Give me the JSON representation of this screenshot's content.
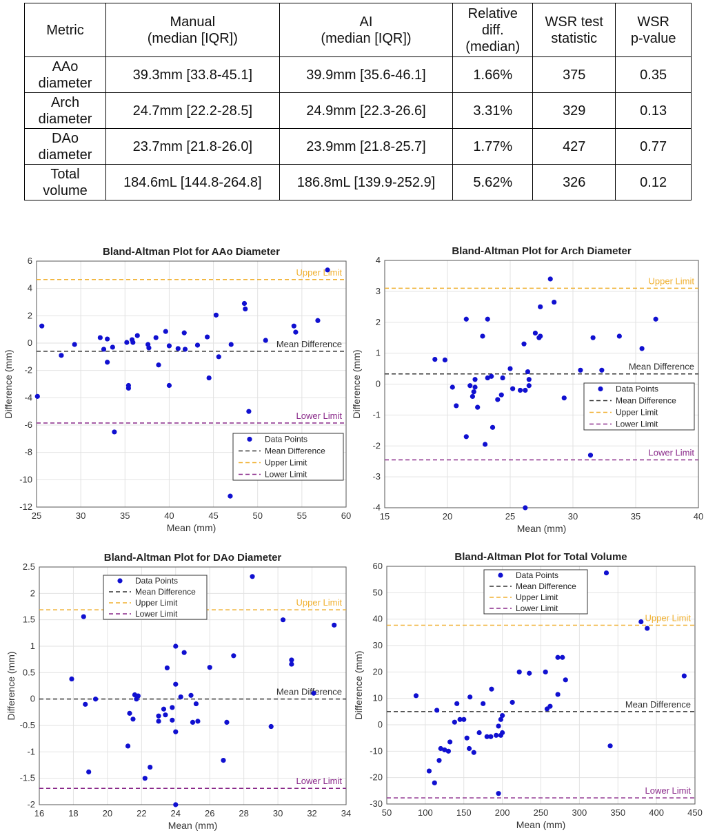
{
  "table": {
    "headers": [
      "Metric",
      "Manual\n(median [IQR])",
      "AI\n(median [IQR])",
      "Relative\ndiff.\n(median)",
      "WSR test\nstatistic",
      "WSR\np-value"
    ],
    "rows": [
      [
        "AAo\ndiameter",
        "39.3mm [33.8-45.1]",
        "39.9mm [35.6-46.1]",
        "1.66%",
        "375",
        "0.35"
      ],
      [
        "Arch\ndiameter",
        "24.7mm [22.2-28.5]",
        "24.9mm [22.3-26.6]",
        "3.31%",
        "329",
        "0.13"
      ],
      [
        "DAo\ndiameter",
        "23.7mm [21.8-26.0]",
        "23.9mm [21.8-25.7]",
        "1.77%",
        "427",
        "0.77"
      ],
      [
        "Total\nvolume",
        "184.6mL [144.8-264.8]",
        "186.8mL [139.9-252.9]",
        "5.62%",
        "326",
        "0.12"
      ]
    ]
  },
  "colors": {
    "points": "#1010d0",
    "mean": "#333333",
    "upper": "#f0b030",
    "lower": "#8a2a8a"
  },
  "labels": {
    "data_points": "Data Points",
    "mean_difference": "Mean Difference",
    "upper_limit": "Upper Limit",
    "lower_limit": "Lower Limit"
  },
  "chart_data": [
    {
      "type": "scatter",
      "title": "Bland-Altman Plot for AAo Diameter",
      "xlabel": "Mean (mm)",
      "ylabel": "Difference (mm)",
      "xlim": [
        25,
        60
      ],
      "ylim": [
        -12,
        6
      ],
      "xticks": [
        25,
        30,
        35,
        40,
        45,
        50,
        55,
        60
      ],
      "yticks": [
        -12,
        -10,
        -8,
        -6,
        -4,
        -2,
        0,
        2,
        4,
        6
      ],
      "mean_difference": -0.6,
      "upper_limit": 4.65,
      "lower_limit": -5.85,
      "grid": true,
      "legend": "lower-right",
      "points": [
        [
          25.1,
          -3.9
        ],
        [
          25.6,
          1.25
        ],
        [
          27.8,
          -0.9
        ],
        [
          29.3,
          -0.1
        ],
        [
          32.2,
          0.4
        ],
        [
          32.6,
          -0.45
        ],
        [
          33.0,
          0.3
        ],
        [
          33.0,
          -1.4
        ],
        [
          33.6,
          -0.3
        ],
        [
          33.8,
          -6.5
        ],
        [
          35.2,
          0.05
        ],
        [
          35.4,
          -3.1
        ],
        [
          35.4,
          -3.3
        ],
        [
          35.8,
          0.25
        ],
        [
          35.9,
          0.05
        ],
        [
          36.4,
          0.55
        ],
        [
          37.6,
          -0.1
        ],
        [
          37.7,
          -0.35
        ],
        [
          38.5,
          0.4
        ],
        [
          38.8,
          -1.6
        ],
        [
          39.6,
          0.85
        ],
        [
          40.0,
          -0.2
        ],
        [
          40.0,
          -3.1
        ],
        [
          41.0,
          -0.4
        ],
        [
          41.7,
          0.75
        ],
        [
          41.8,
          -0.45
        ],
        [
          43.2,
          -0.15
        ],
        [
          44.3,
          0.45
        ],
        [
          44.5,
          -2.55
        ],
        [
          45.3,
          2.05
        ],
        [
          45.6,
          -1.0
        ],
        [
          46.9,
          -11.2
        ],
        [
          47.0,
          -0.1
        ],
        [
          48.5,
          2.9
        ],
        [
          48.6,
          2.5
        ],
        [
          49.0,
          -5.0
        ],
        [
          50.9,
          0.2
        ],
        [
          54.1,
          1.25
        ],
        [
          54.3,
          0.8
        ],
        [
          56.8,
          1.65
        ],
        [
          57.9,
          5.35
        ]
      ]
    },
    {
      "type": "scatter",
      "title": "Bland-Altman Plot for Arch Diameter",
      "xlabel": "Mean (mm)",
      "ylabel": "Difference (mm)",
      "xlim": [
        15,
        40
      ],
      "ylim": [
        -4,
        4
      ],
      "xticks": [
        15,
        20,
        25,
        30,
        35,
        40
      ],
      "yticks": [
        -4,
        -3,
        -2,
        -1,
        0,
        1,
        2,
        3,
        4
      ],
      "mean_difference": 0.33,
      "upper_limit": 3.1,
      "lower_limit": -2.45,
      "grid": true,
      "legend": "center-right",
      "points": [
        [
          19.0,
          0.8
        ],
        [
          19.8,
          0.78
        ],
        [
          20.4,
          -0.1
        ],
        [
          20.7,
          -0.7
        ],
        [
          21.5,
          2.1
        ],
        [
          21.5,
          -1.7
        ],
        [
          21.8,
          -0.05
        ],
        [
          22.0,
          -0.4
        ],
        [
          22.1,
          -0.25
        ],
        [
          22.2,
          -0.1
        ],
        [
          22.2,
          0.15
        ],
        [
          22.4,
          -0.75
        ],
        [
          22.8,
          1.55
        ],
        [
          23.0,
          -1.95
        ],
        [
          23.2,
          0.2
        ],
        [
          23.2,
          2.1
        ],
        [
          23.5,
          0.25
        ],
        [
          23.6,
          -1.4
        ],
        [
          24.0,
          -0.5
        ],
        [
          24.3,
          -0.35
        ],
        [
          24.4,
          0.2
        ],
        [
          25.0,
          0.5
        ],
        [
          25.2,
          -0.15
        ],
        [
          25.8,
          -0.2
        ],
        [
          26.1,
          1.3
        ],
        [
          26.2,
          -0.2
        ],
        [
          26.4,
          0.4
        ],
        [
          26.5,
          0.15
        ],
        [
          26.5,
          -0.05
        ],
        [
          26.2,
          -4.0
        ],
        [
          27.0,
          1.65
        ],
        [
          27.3,
          1.5
        ],
        [
          27.4,
          2.5
        ],
        [
          27.4,
          1.55
        ],
        [
          28.2,
          3.4
        ],
        [
          28.5,
          2.65
        ],
        [
          29.3,
          -0.45
        ],
        [
          30.6,
          0.45
        ],
        [
          31.4,
          -2.3
        ],
        [
          31.6,
          1.5
        ],
        [
          32.3,
          0.45
        ],
        [
          33.7,
          1.55
        ],
        [
          35.5,
          1.15
        ],
        [
          36.6,
          2.1
        ]
      ]
    },
    {
      "type": "scatter",
      "title": "Bland-Altman Plot for DAo Diameter",
      "xlabel": "Mean (mm)",
      "ylabel": "Difference (mm)",
      "xlim": [
        16,
        34
      ],
      "ylim": [
        -2,
        2.5
      ],
      "xticks": [
        16,
        18,
        20,
        22,
        24,
        26,
        28,
        30,
        32,
        34
      ],
      "yticks": [
        -2,
        -1.5,
        -1,
        -0.5,
        0,
        0.5,
        1,
        1.5,
        2,
        2.5
      ],
      "mean_difference": 0.0,
      "upper_limit": 1.69,
      "lower_limit": -1.69,
      "grid": true,
      "legend": "top-left",
      "points": [
        [
          17.9,
          0.38
        ],
        [
          18.6,
          1.56
        ],
        [
          18.7,
          -0.1
        ],
        [
          18.9,
          -1.38
        ],
        [
          19.3,
          0.0
        ],
        [
          21.2,
          -0.89
        ],
        [
          21.3,
          -0.27
        ],
        [
          21.5,
          -0.38
        ],
        [
          21.6,
          0.08
        ],
        [
          21.7,
          0.0
        ],
        [
          21.8,
          0.06
        ],
        [
          22.2,
          -1.5
        ],
        [
          22.5,
          -1.29
        ],
        [
          23.0,
          -0.32
        ],
        [
          23.0,
          -0.42
        ],
        [
          23.3,
          -0.19
        ],
        [
          23.4,
          -0.3
        ],
        [
          23.5,
          0.59
        ],
        [
          23.8,
          -0.16
        ],
        [
          23.8,
          -0.4
        ],
        [
          24.0,
          1.0
        ],
        [
          24.0,
          0.28
        ],
        [
          24.0,
          -0.62
        ],
        [
          24.0,
          -2.0
        ],
        [
          24.3,
          0.04
        ],
        [
          24.5,
          0.88
        ],
        [
          24.9,
          0.07
        ],
        [
          25.0,
          -0.44
        ],
        [
          25.2,
          -0.09
        ],
        [
          25.3,
          -0.42
        ],
        [
          26.0,
          0.6
        ],
        [
          26.8,
          -1.16
        ],
        [
          27.0,
          -0.44
        ],
        [
          27.4,
          0.82
        ],
        [
          28.5,
          2.32
        ],
        [
          29.6,
          -0.52
        ],
        [
          30.3,
          1.5
        ],
        [
          30.8,
          0.74
        ],
        [
          30.8,
          0.66
        ],
        [
          32.1,
          0.11
        ],
        [
          33.3,
          1.4
        ]
      ]
    },
    {
      "type": "scatter",
      "title": "Bland-Altman Plot for Total Volume",
      "xlabel": "Mean (mm)",
      "ylabel": "Difference (mm)",
      "xlim": [
        50,
        450
      ],
      "ylim": [
        -30,
        60
      ],
      "xticks": [
        50,
        100,
        150,
        200,
        250,
        300,
        350,
        400,
        450
      ],
      "yticks": [
        -30,
        -20,
        -10,
        0,
        10,
        20,
        30,
        40,
        50,
        60
      ],
      "mean_difference": 5.0,
      "upper_limit": 37.7,
      "lower_limit": -27.7,
      "grid": true,
      "legend": "top-center",
      "points": [
        [
          88,
          11
        ],
        [
          105,
          -17.5
        ],
        [
          112,
          -22
        ],
        [
          115,
          5.5
        ],
        [
          118,
          -13.5
        ],
        [
          120,
          -9
        ],
        [
          125,
          -9.5
        ],
        [
          130,
          -10
        ],
        [
          132,
          -6.5
        ],
        [
          138,
          1
        ],
        [
          141,
          8
        ],
        [
          145,
          2
        ],
        [
          150,
          2
        ],
        [
          154,
          -5
        ],
        [
          157,
          -9
        ],
        [
          158,
          10.5
        ],
        [
          163,
          -10.5
        ],
        [
          170,
          -3
        ],
        [
          175,
          8
        ],
        [
          180,
          -4.5
        ],
        [
          185,
          -4.5
        ],
        [
          186,
          13.5
        ],
        [
          192,
          -4
        ],
        [
          195,
          -0.5
        ],
        [
          198,
          2
        ],
        [
          198,
          -4
        ],
        [
          200,
          3.5
        ],
        [
          200,
          -3
        ],
        [
          213,
          8.5
        ],
        [
          222,
          20
        ],
        [
          235,
          19.5
        ],
        [
          256,
          20
        ],
        [
          258,
          6
        ],
        [
          262,
          7
        ],
        [
          272,
          11.5
        ],
        [
          272,
          25.5
        ],
        [
          278,
          25.5
        ],
        [
          282,
          17
        ],
        [
          335,
          57.5
        ],
        [
          340,
          -8
        ],
        [
          380,
          39
        ],
        [
          388,
          36.5
        ],
        [
          436,
          18.5
        ],
        [
          195,
          -26
        ]
      ]
    }
  ]
}
